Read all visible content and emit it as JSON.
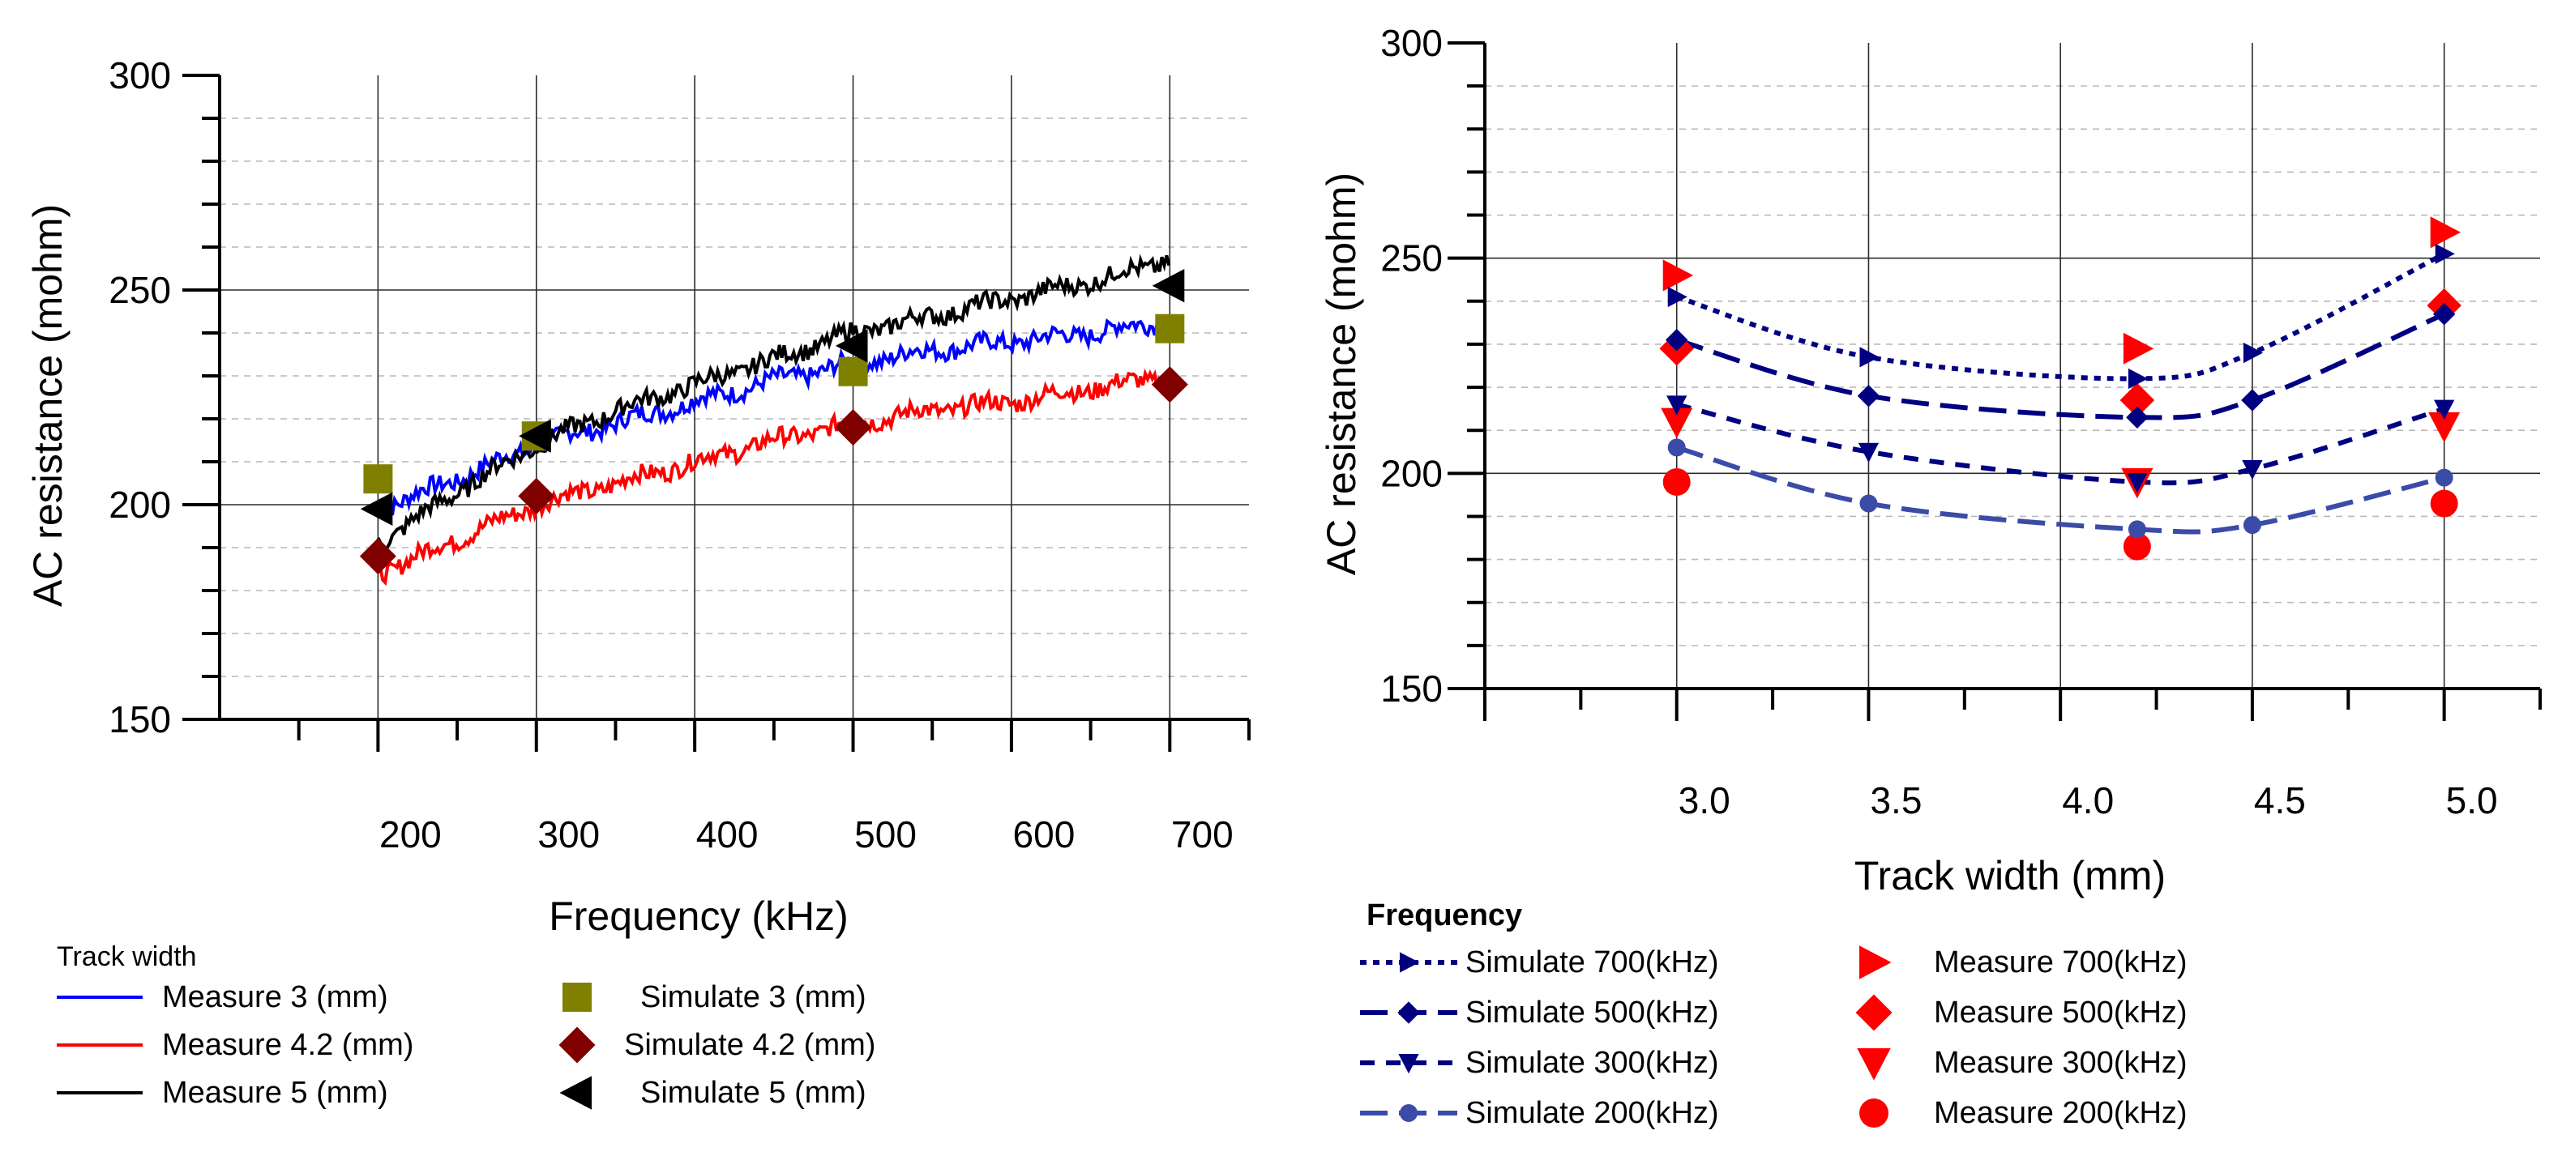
{
  "chart_data": [
    {
      "id": "left",
      "type": "line",
      "xlabel": "Frequency (kHz)",
      "ylabel": "AC resistance (mohm)",
      "xlim": [
        100,
        750
      ],
      "ylim": [
        150,
        300
      ],
      "xticks": [
        200,
        300,
        400,
        500,
        600,
        700
      ],
      "xtick_labels": [
        "200",
        "300",
        "400",
        "500",
        "600",
        "700"
      ],
      "yticks": [
        150,
        200,
        250,
        300
      ],
      "ytick_labels": [
        "150",
        "200",
        "250",
        "300"
      ],
      "legend_title": "Track width",
      "legend_position": "bottom",
      "measured_series": [
        {
          "name": "Measure 3 (mm)",
          "color": "#0000ff",
          "x": [
            200,
            250,
            300,
            350,
            400,
            450,
            500,
            550,
            600,
            650,
            700
          ],
          "values": [
            199,
            206,
            214,
            219,
            224,
            229,
            233,
            236,
            238,
            240,
            243
          ]
        },
        {
          "name": "Measure 4.2 (mm)",
          "color": "#ff0000",
          "x": [
            200,
            250,
            300,
            350,
            400,
            450,
            500,
            550,
            600,
            650,
            700
          ],
          "values": [
            184,
            192,
            200,
            205,
            210,
            215,
            219,
            222,
            224,
            227,
            230
          ]
        },
        {
          "name": "Measure 5 (mm)",
          "color": "#000000",
          "x": [
            200,
            250,
            300,
            350,
            400,
            450,
            500,
            550,
            600,
            650,
            700
          ],
          "values": [
            191,
            203,
            214,
            222,
            228,
            234,
            240,
            244,
            248,
            252,
            257
          ]
        }
      ],
      "simulated_series": [
        {
          "name": "Simulate 3 (mm)",
          "marker": "square",
          "color": "#808000",
          "x": [
            200,
            300,
            500,
            700
          ],
          "values": [
            206,
            216,
            231,
            241
          ]
        },
        {
          "name": "Simulate 4.2 (mm)",
          "marker": "diamond",
          "color": "#800000",
          "x": [
            200,
            300,
            500,
            700
          ],
          "values": [
            188,
            202,
            218,
            228
          ]
        },
        {
          "name": "Simulate 5 (mm)",
          "marker": "triangle-left",
          "color": "#000000",
          "x": [
            200,
            300,
            500,
            700
          ],
          "values": [
            199,
            216,
            237,
            251
          ]
        }
      ]
    },
    {
      "id": "right",
      "type": "line",
      "xlabel": "Track width (mm)",
      "ylabel": "AC resistance (mohm)",
      "xlim": [
        2.5,
        5.25
      ],
      "ylim": [
        150,
        300
      ],
      "xticks": [
        3.0,
        3.5,
        4.0,
        4.5,
        5.0
      ],
      "xtick_labels": [
        "3.0",
        "3.5",
        "4.0",
        "4.5",
        "5.0"
      ],
      "yticks": [
        150,
        200,
        250,
        300
      ],
      "ytick_labels": [
        "150",
        "200",
        "250",
        "300"
      ],
      "legend_title": "Frequency",
      "legend_position": "bottom",
      "simulated_series": [
        {
          "name": "Simulate 700(kHz)",
          "marker": "triangle-right",
          "dash": "short-dot",
          "color": "#000080",
          "x": [
            3.0,
            3.5,
            4.2,
            4.5,
            5.0
          ],
          "values": [
            241,
            227,
            222,
            228,
            251
          ]
        },
        {
          "name": "Simulate 500(kHz)",
          "marker": "diamond",
          "dash": "long-dash",
          "color": "#000080",
          "x": [
            3.0,
            3.5,
            4.2,
            4.5,
            5.0
          ],
          "values": [
            231,
            218,
            213,
            217,
            237
          ]
        },
        {
          "name": "Simulate  300(kHz)",
          "marker": "triangle-down",
          "dash": "dash",
          "color": "#000080",
          "x": [
            3.0,
            3.5,
            4.2,
            4.5,
            5.0
          ],
          "values": [
            216,
            205,
            198,
            201,
            215
          ]
        },
        {
          "name": "Simulate  200(kHz)",
          "marker": "circle",
          "dash": "long-dash",
          "color": "#3b4ba8",
          "x": [
            3.0,
            3.5,
            4.2,
            4.5,
            5.0
          ],
          "values": [
            206,
            193,
            187,
            188,
            199
          ]
        }
      ],
      "measured_series": [
        {
          "name": "Measure 700(kHz)",
          "marker": "triangle-right",
          "color": "#ff0000",
          "x": [
            3.0,
            4.2,
            5.0
          ],
          "values": [
            246,
            229,
            256
          ]
        },
        {
          "name": "Measure  500(kHz)",
          "marker": "diamond",
          "color": "#ff0000",
          "x": [
            3.0,
            4.2,
            5.0
          ],
          "values": [
            229,
            217,
            239
          ]
        },
        {
          "name": "Measure  300(kHz)",
          "marker": "triangle-down",
          "color": "#ff0000",
          "x": [
            3.0,
            4.2,
            5.0
          ],
          "values": [
            212,
            198,
            211
          ]
        },
        {
          "name": "Measure  200(kHz)",
          "marker": "circle",
          "color": "#ff0000",
          "x": [
            3.0,
            4.2,
            5.0
          ],
          "values": [
            198,
            183,
            193
          ]
        }
      ]
    }
  ]
}
